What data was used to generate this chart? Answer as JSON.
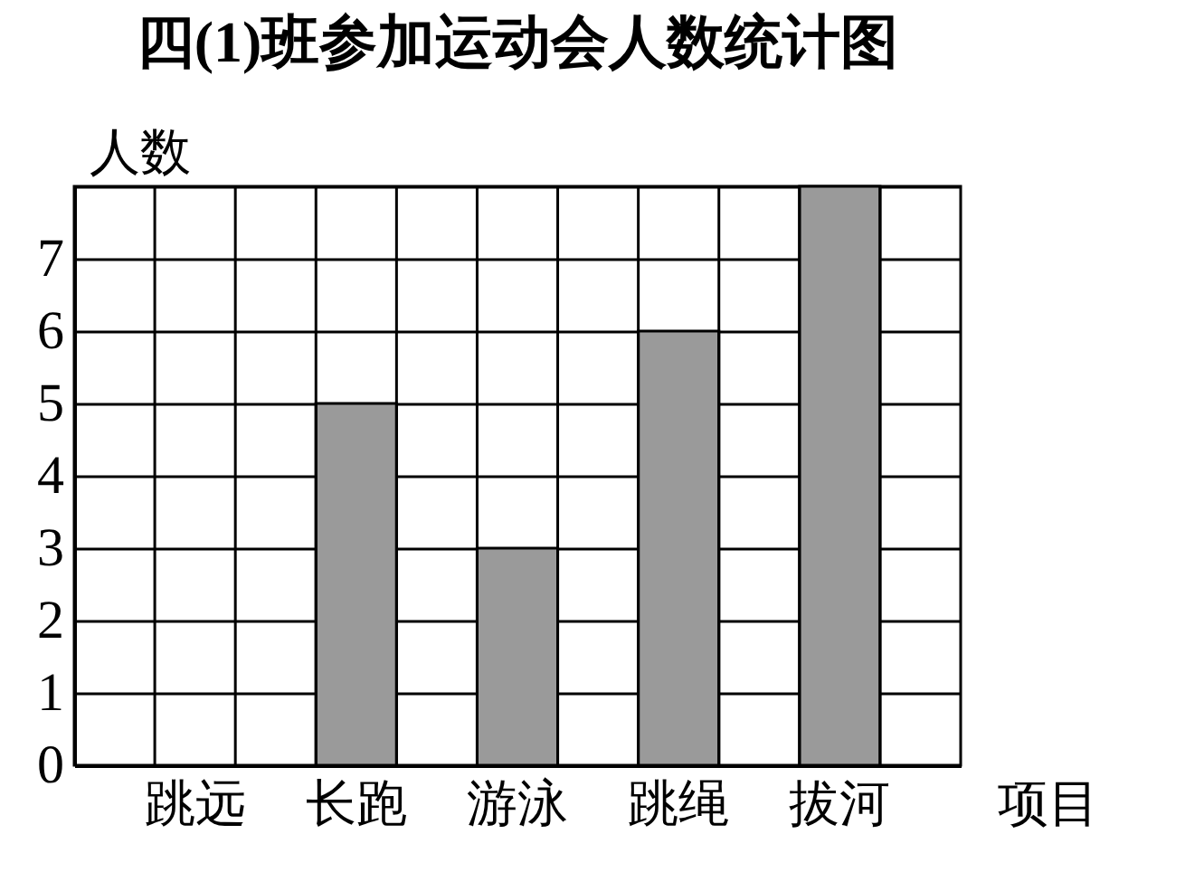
{
  "chart_data": {
    "type": "bar",
    "title": "四(1)班参加运动会人数统计图",
    "xlabel": "项目",
    "ylabel": "人数",
    "categories": [
      "跳远",
      "长跑",
      "游泳",
      "跳绳",
      "拔河"
    ],
    "values": [
      null,
      5,
      3,
      6,
      8
    ],
    "color": "#9a9a9a",
    "ylim": [
      0,
      8
    ],
    "yticks": [
      0,
      1,
      2,
      3,
      4,
      5,
      6,
      7,
      {
        "value": 8,
        "label": null
      }
    ],
    "grid": true
  }
}
